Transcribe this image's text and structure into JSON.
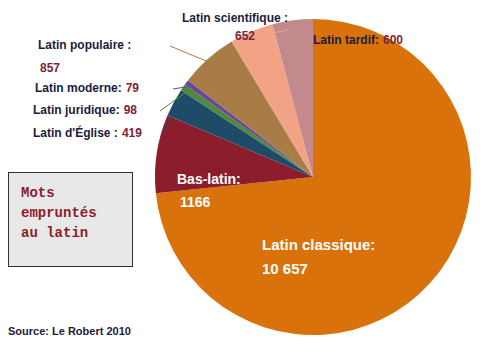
{
  "chart_data": {
    "type": "pie",
    "title": "Mots empruntés au latin",
    "source": "Source: Le Robert 2010",
    "categories": [
      "Latin classique:",
      "Bas-latin:",
      "Latin d'Église :",
      "Latin juridique:",
      "Latin moderne:",
      "Latin populaire :",
      "Latin scientifique :",
      "Latin tardif:"
    ],
    "values": [
      10657,
      1166,
      419,
      98,
      79,
      857,
      652,
      600
    ],
    "value_labels": [
      "10 657",
      "1166",
      "419",
      "98",
      "79",
      "857",
      "652",
      "600"
    ],
    "colors": [
      "#d9720b",
      "#8c1d2c",
      "#1d4b68",
      "#4e8a3c",
      "#6a4a98",
      "#a87c47",
      "#f2a386",
      "#c28a8c"
    ],
    "data_labels": true
  }
}
